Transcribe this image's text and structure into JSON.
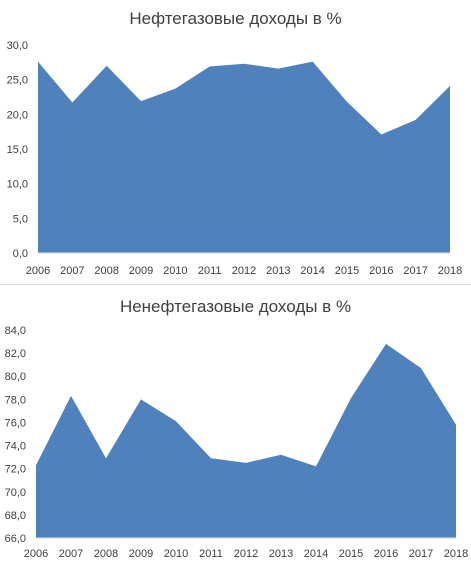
{
  "chart_data": [
    {
      "type": "area",
      "title": "Нефтегазовые доходы в %",
      "x": [
        "2006",
        "2007",
        "2008",
        "2009",
        "2010",
        "2011",
        "2012",
        "2013",
        "2014",
        "2015",
        "2016",
        "2017",
        "2018"
      ],
      "series": [
        {
          "values": [
            27.6,
            21.7,
            27.0,
            21.9,
            23.7,
            26.9,
            27.3,
            26.6,
            27.6,
            21.8,
            17.1,
            19.2,
            24.1
          ]
        }
      ],
      "ylim": [
        0,
        30
      ],
      "yticks": [
        "0,0",
        "5,0",
        "10,0",
        "15,0",
        "20,0",
        "25,0",
        "30,0"
      ],
      "grid": false,
      "color": "#4f81bd"
    },
    {
      "type": "area",
      "title": "Ненефтегазовые доходы в %",
      "x": [
        "2006",
        "2007",
        "2008",
        "2009",
        "2010",
        "2011",
        "2012",
        "2013",
        "2014",
        "2015",
        "2016",
        "2017",
        "2018"
      ],
      "series": [
        {
          "values": [
            72.3,
            78.3,
            72.9,
            78.0,
            76.1,
            72.9,
            72.5,
            73.2,
            72.2,
            78.1,
            82.8,
            80.7,
            75.8
          ]
        }
      ],
      "ylim": [
        66,
        84
      ],
      "yticks": [
        "66,0",
        "68,0",
        "70,0",
        "72,0",
        "74,0",
        "76,0",
        "78,0",
        "80,0",
        "82,0",
        "84,0"
      ],
      "grid": false,
      "color": "#4f81bd"
    }
  ]
}
